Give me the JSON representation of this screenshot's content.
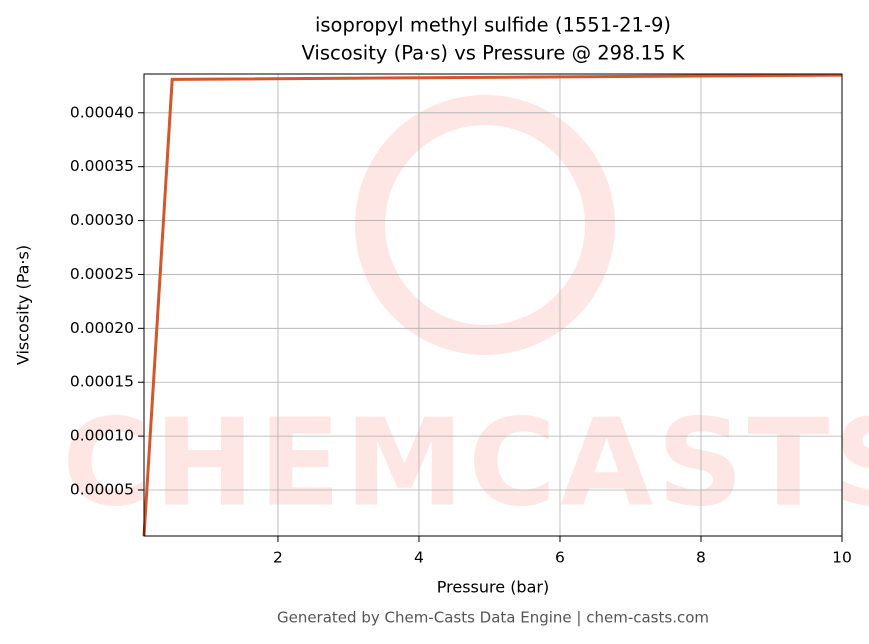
{
  "chart_data": {
    "type": "line",
    "title": "isopropyl methyl sulfide (1551-21-9)",
    "subtitle": "Viscosity (Pa·s) vs Pressure @ 298.15 K",
    "x_label": "Pressure (bar)",
    "y_label": "Viscosity (Pa·s)",
    "watermark": "CHEMCASTS",
    "footer": "Generated by Chem-Casts Data Engine | chem-casts.com",
    "x": [
      0.1,
      0.5,
      10
    ],
    "series": [
      {
        "name": "Viscosity",
        "color": "#d4562a",
        "values": [
          7.3e-06,
          0.000431,
          0.000435
        ]
      }
    ],
    "xlim": [
      0.1,
      10
    ],
    "ylim": [
      7.3e-06,
      0.000436
    ],
    "xticks": [
      2,
      4,
      6,
      8,
      10
    ],
    "yticks": [
      {
        "value": 5e-05,
        "label": "0.00005"
      },
      {
        "value": 0.0001,
        "label": "0.00010"
      },
      {
        "value": 0.00015,
        "label": "0.00015"
      },
      {
        "value": 0.0002,
        "label": "0.00020"
      },
      {
        "value": 0.00025,
        "label": "0.00025"
      },
      {
        "value": 0.0003,
        "label": "0.00030"
      },
      {
        "value": 0.00035,
        "label": "0.00035"
      },
      {
        "value": 0.0004,
        "label": "0.00040"
      }
    ],
    "grid": true
  }
}
